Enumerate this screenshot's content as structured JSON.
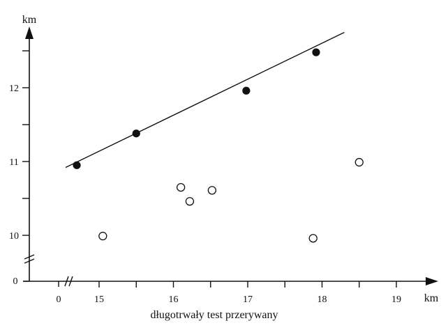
{
  "chart_data": {
    "type": "scatter",
    "title": "",
    "xlabel": "długotrwały test przerywany",
    "x_unit": "km",
    "y_unit": "km",
    "xlim": [
      14.5,
      19.5
    ],
    "ylim": [
      9.4,
      12.75
    ],
    "axis_break_x": true,
    "axis_break_y": true,
    "x_zero_label": "0",
    "y_zero_label": "0",
    "x_ticks": [
      {
        "value": 15,
        "label": "15"
      },
      {
        "value": 15.5,
        "label": ""
      },
      {
        "value": 16,
        "label": "16"
      },
      {
        "value": 16.5,
        "label": ""
      },
      {
        "value": 17,
        "label": "17"
      },
      {
        "value": 17.5,
        "label": ""
      },
      {
        "value": 18,
        "label": "18"
      },
      {
        "value": 18.5,
        "label": ""
      },
      {
        "value": 19,
        "label": "19"
      }
    ],
    "y_ticks": [
      {
        "value": 10,
        "label": "10"
      },
      {
        "value": 10.5,
        "label": ""
      },
      {
        "value": 11,
        "label": "11"
      },
      {
        "value": 11.5,
        "label": ""
      },
      {
        "value": 12,
        "label": "12"
      },
      {
        "value": 12.5,
        "label": ""
      }
    ],
    "grid": false,
    "series": [
      {
        "marker": "filled-circle",
        "points": [
          {
            "x": 14.7,
            "y": 10.95
          },
          {
            "x": 15.5,
            "y": 11.38
          },
          {
            "x": 16.98,
            "y": 11.96
          },
          {
            "x": 17.92,
            "y": 12.48
          }
        ]
      },
      {
        "marker": "open-circle",
        "points": [
          {
            "x": 15.05,
            "y": 9.99
          },
          {
            "x": 16.1,
            "y": 10.65
          },
          {
            "x": 16.22,
            "y": 10.46
          },
          {
            "x": 16.52,
            "y": 10.61
          },
          {
            "x": 17.88,
            "y": 9.96
          },
          {
            "x": 18.5,
            "y": 10.99
          }
        ]
      }
    ],
    "fit_line": {
      "x": [
        14.55,
        18.3
      ],
      "y": [
        10.92,
        12.75
      ]
    }
  }
}
